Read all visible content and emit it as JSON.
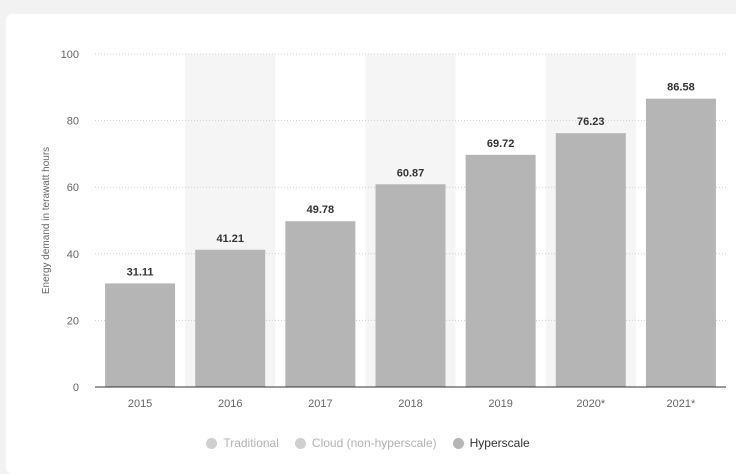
{
  "chart_data": {
    "type": "bar",
    "categories": [
      "2015",
      "2016",
      "2017",
      "2018",
      "2019",
      "2020*",
      "2021*"
    ],
    "series": [
      {
        "name": "Hyperscale",
        "values": [
          31.11,
          41.21,
          49.78,
          60.87,
          69.72,
          76.23,
          86.58
        ]
      }
    ],
    "value_labels": [
      "31.11",
      "41.21",
      "49.78",
      "60.87",
      "69.72",
      "76.23",
      "86.58"
    ],
    "ylabel": "Energy demand in terawatt hours",
    "xlabel": "",
    "ylim": [
      0,
      100
    ],
    "yticks": [
      0,
      20,
      40,
      60,
      80,
      100
    ],
    "grid": true,
    "legend_position": "bottom",
    "colors": {
      "bar": "#b5b5b5",
      "column_band": "#f5f5f5",
      "grid": "#cfcfcf",
      "axis": "#333333",
      "label": "#333333",
      "tick": "#666666"
    }
  },
  "legend": {
    "items": [
      {
        "label": "Traditional",
        "color": "#d0d0d0",
        "active": false
      },
      {
        "label": "Cloud (non-hyperscale)",
        "color": "#d0d0d0",
        "active": false
      },
      {
        "label": "Hyperscale",
        "color": "#b5b5b5",
        "active": true
      }
    ]
  }
}
